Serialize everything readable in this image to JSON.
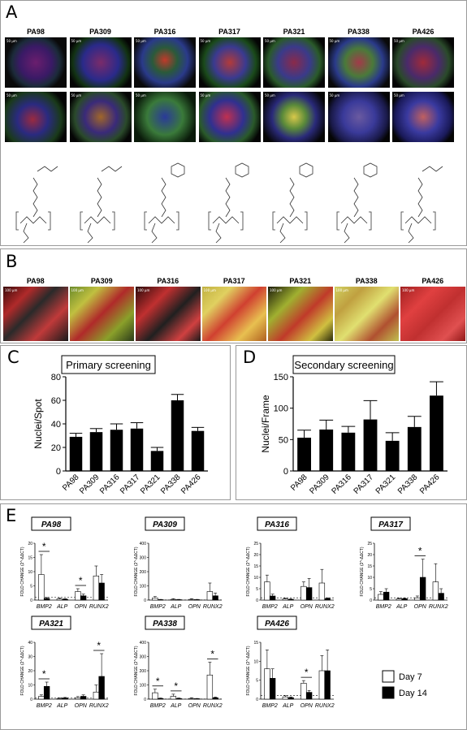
{
  "panels": {
    "A": {
      "label": "A",
      "polymers": [
        "PA98",
        "PA309",
        "PA316",
        "PA317",
        "PA321",
        "PA338",
        "PA426"
      ],
      "scale_label": "50 µm"
    },
    "B": {
      "label": "B",
      "polymers": [
        "PA98",
        "PA309",
        "PA316",
        "PA317",
        "PA321",
        "PA338",
        "PA426"
      ],
      "scale_label": "100 µm"
    },
    "C": {
      "label": "C"
    },
    "D": {
      "label": "D"
    },
    "E": {
      "label": "E"
    }
  },
  "chart_data": [
    {
      "id": "C",
      "type": "bar",
      "title": "Primary screening",
      "ylabel": "Nuclei/Spot",
      "xlabel": "",
      "categories": [
        "PA98",
        "PA309",
        "PA316",
        "PA317",
        "PA321",
        "PA338",
        "PA426"
      ],
      "values": [
        29,
        33,
        35,
        36,
        17,
        60,
        34
      ],
      "errors": [
        3,
        3,
        5,
        5,
        3,
        5,
        3
      ],
      "ylim": [
        0,
        80
      ],
      "yticks": [
        0,
        20,
        40,
        60,
        80
      ],
      "color": "#000000"
    },
    {
      "id": "D",
      "type": "bar",
      "title": "Secondary screening",
      "ylabel": "Nuclei/Frame",
      "xlabel": "",
      "categories": [
        "PA98",
        "PA309",
        "PA316",
        "PA317",
        "PA321",
        "PA338",
        "PA426"
      ],
      "values": [
        53,
        66,
        61,
        82,
        48,
        70,
        120
      ],
      "errors": [
        12,
        15,
        10,
        30,
        13,
        17,
        22
      ],
      "ylim": [
        0,
        150
      ],
      "yticks": [
        0,
        50,
        100,
        150
      ],
      "color": "#000000"
    },
    {
      "id": "E",
      "type": "bar",
      "ylabel": "FOLD CHANGE (2^-ΔΔCT)",
      "categories": [
        "BMP2",
        "ALP",
        "OPN",
        "RUNX2"
      ],
      "legend": {
        "labels": [
          "Day 7",
          "Day 14"
        ],
        "colors": [
          "#ffffff",
          "#000000"
        ]
      },
      "subplots": [
        {
          "name": "PA98",
          "ylim": [
            0,
            20
          ],
          "yticks": [
            0,
            5,
            10,
            15,
            20
          ],
          "series": [
            {
              "name": "Day 7",
              "values": [
                9,
                0.4,
                3,
                8.5
              ],
              "errors": [
                7,
                0.3,
                1,
                3.5
              ]
            },
            {
              "name": "Day 14",
              "values": [
                0.6,
                0.3,
                1.5,
                6
              ],
              "errors": [
                0.3,
                0.2,
                0.6,
                3
              ]
            }
          ],
          "sig": [
            0,
            2
          ]
        },
        {
          "name": "PA309",
          "ylim": [
            0,
            400
          ],
          "yticks": [
            0,
            100,
            200,
            300,
            400
          ],
          "series": [
            {
              "name": "Day 7",
              "values": [
                15,
                5,
                5,
                60
              ],
              "errors": [
                10,
                5,
                5,
                60
              ]
            },
            {
              "name": "Day 14",
              "values": [
                3,
                3,
                3,
                30
              ],
              "errors": [
                2,
                2,
                2,
                20
              ]
            }
          ],
          "sig": []
        },
        {
          "name": "PA316",
          "ylim": [
            0,
            25
          ],
          "yticks": [
            0,
            5,
            10,
            15,
            20,
            25
          ],
          "series": [
            {
              "name": "Day 7",
              "values": [
                8,
                0.5,
                6,
                7.5
              ],
              "errors": [
                3,
                0.3,
                2,
                6
              ]
            },
            {
              "name": "Day 14",
              "values": [
                1.8,
                0.3,
                5.5,
                0.7
              ],
              "errors": [
                0.8,
                0.2,
                4,
                0.3
              ]
            }
          ],
          "sig": []
        },
        {
          "name": "PA317",
          "ylim": [
            0,
            25
          ],
          "yticks": [
            0,
            5,
            10,
            15,
            20,
            25
          ],
          "series": [
            {
              "name": "Day 7",
              "values": [
                2.5,
                0.5,
                1,
                8
              ],
              "errors": [
                1.2,
                0.3,
                0.8,
                8
              ]
            },
            {
              "name": "Day 14",
              "values": [
                3.5,
                0.6,
                10,
                3
              ],
              "errors": [
                1.5,
                0.3,
                8,
                2
              ]
            }
          ],
          "sig": [
            2
          ]
        },
        {
          "name": "PA321",
          "ylim": [
            0,
            40
          ],
          "yticks": [
            0,
            10,
            20,
            30,
            40
          ],
          "series": [
            {
              "name": "Day 7",
              "values": [
                2,
                0.5,
                1,
                5
              ],
              "errors": [
                1,
                0.3,
                0.8,
                5
              ]
            },
            {
              "name": "Day 14",
              "values": [
                9,
                0.8,
                2,
                16
              ],
              "errors": [
                3,
                0.4,
                1,
                16
              ]
            }
          ],
          "sig": [
            0,
            3
          ]
        },
        {
          "name": "PA338",
          "ylim": [
            0,
            400
          ],
          "yticks": [
            0,
            100,
            200,
            300,
            400
          ],
          "series": [
            {
              "name": "Day 7",
              "values": [
                45,
                20,
                5,
                170
              ],
              "errors": [
                25,
                15,
                5,
                90
              ]
            },
            {
              "name": "Day 14",
              "values": [
                5,
                5,
                3,
                10
              ],
              "errors": [
                3,
                3,
                2,
                5
              ]
            }
          ],
          "sig": [
            0,
            1,
            3
          ]
        },
        {
          "name": "PA426",
          "ylim": [
            0,
            15
          ],
          "yticks": [
            0,
            5,
            10,
            15
          ],
          "series": [
            {
              "name": "Day 7",
              "values": [
                8,
                0.6,
                4.2,
                7.5
              ],
              "errors": [
                5,
                0.3,
                0.7,
                4
              ]
            },
            {
              "name": "Day 14",
              "values": [
                5.5,
                0.4,
                1.8,
                7.5
              ],
              "errors": [
                2.5,
                0.2,
                0.5,
                5.5
              ]
            }
          ],
          "sig": [
            2
          ]
        }
      ]
    }
  ]
}
